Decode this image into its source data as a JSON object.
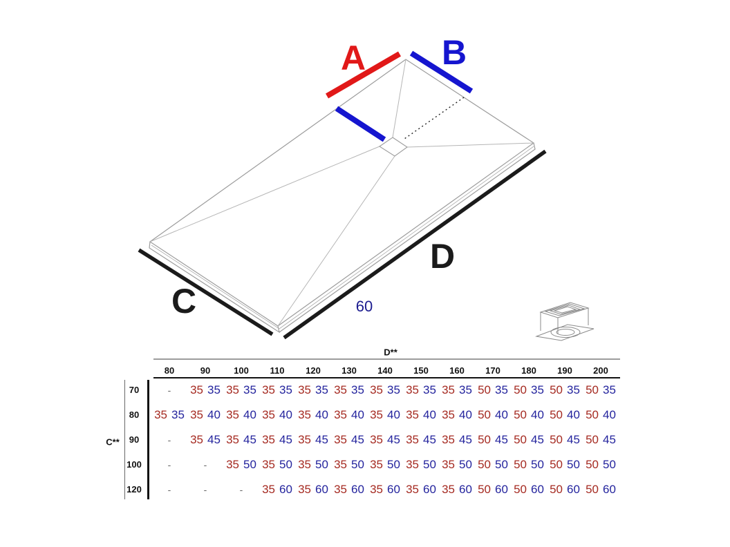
{
  "diagram": {
    "labels": {
      "a": "A",
      "b": "B",
      "c": "C",
      "d": "D",
      "drain_offset": "60"
    },
    "colors": {
      "bar_red": "#e11818",
      "bar_blue": "#1515cf",
      "dim_blue": "#1b1b8f",
      "ink": "#1b1b1b",
      "table_red": "#a52a21",
      "table_blue": "#23239d",
      "line_gray": "#9c9c9c",
      "fold_gray": "#b5b5b5",
      "axis_black": "#111111"
    },
    "icons": [
      "drain-icon"
    ]
  },
  "chart_data": {
    "type": "table",
    "title": "",
    "col_axis_label": "D**",
    "row_axis_label": "C**",
    "columns": [
      "80",
      "90",
      "100",
      "110",
      "120",
      "130",
      "140",
      "150",
      "160",
      "170",
      "180",
      "190",
      "200"
    ],
    "rows": [
      {
        "label": "70",
        "cells": [
          "-",
          [
            "35",
            "35"
          ],
          [
            "35",
            "35"
          ],
          [
            "35",
            "35"
          ],
          [
            "35",
            "35"
          ],
          [
            "35",
            "35"
          ],
          [
            "35",
            "35"
          ],
          [
            "35",
            "35"
          ],
          [
            "35",
            "35"
          ],
          [
            "50",
            "35"
          ],
          [
            "50",
            "35"
          ],
          [
            "50",
            "35"
          ],
          [
            "50",
            "35"
          ]
        ]
      },
      {
        "label": "80",
        "cells": [
          [
            "35",
            "35"
          ],
          [
            "35",
            "40"
          ],
          [
            "35",
            "40"
          ],
          [
            "35",
            "40"
          ],
          [
            "35",
            "40"
          ],
          [
            "35",
            "40"
          ],
          [
            "35",
            "40"
          ],
          [
            "35",
            "40"
          ],
          [
            "35",
            "40"
          ],
          [
            "50",
            "40"
          ],
          [
            "50",
            "40"
          ],
          [
            "50",
            "40"
          ],
          [
            "50",
            "40"
          ]
        ]
      },
      {
        "label": "90",
        "cells": [
          "-",
          [
            "35",
            "45"
          ],
          [
            "35",
            "45"
          ],
          [
            "35",
            "45"
          ],
          [
            "35",
            "45"
          ],
          [
            "35",
            "45"
          ],
          [
            "35",
            "45"
          ],
          [
            "35",
            "45"
          ],
          [
            "35",
            "45"
          ],
          [
            "50",
            "45"
          ],
          [
            "50",
            "45"
          ],
          [
            "50",
            "45"
          ],
          [
            "50",
            "45"
          ]
        ]
      },
      {
        "label": "100",
        "cells": [
          "-",
          "-",
          [
            "35",
            "50"
          ],
          [
            "35",
            "50"
          ],
          [
            "35",
            "50"
          ],
          [
            "35",
            "50"
          ],
          [
            "35",
            "50"
          ],
          [
            "35",
            "50"
          ],
          [
            "35",
            "50"
          ],
          [
            "50",
            "50"
          ],
          [
            "50",
            "50"
          ],
          [
            "50",
            "50"
          ],
          [
            "50",
            "50"
          ]
        ]
      },
      {
        "label": "120",
        "cells": [
          "-",
          "-",
          "-",
          [
            "35",
            "60"
          ],
          [
            "35",
            "60"
          ],
          [
            "35",
            "60"
          ],
          [
            "35",
            "60"
          ],
          [
            "35",
            "60"
          ],
          [
            "35",
            "60"
          ],
          [
            "50",
            "60"
          ],
          [
            "50",
            "60"
          ],
          [
            "50",
            "60"
          ],
          [
            "50",
            "60"
          ]
        ]
      }
    ]
  }
}
